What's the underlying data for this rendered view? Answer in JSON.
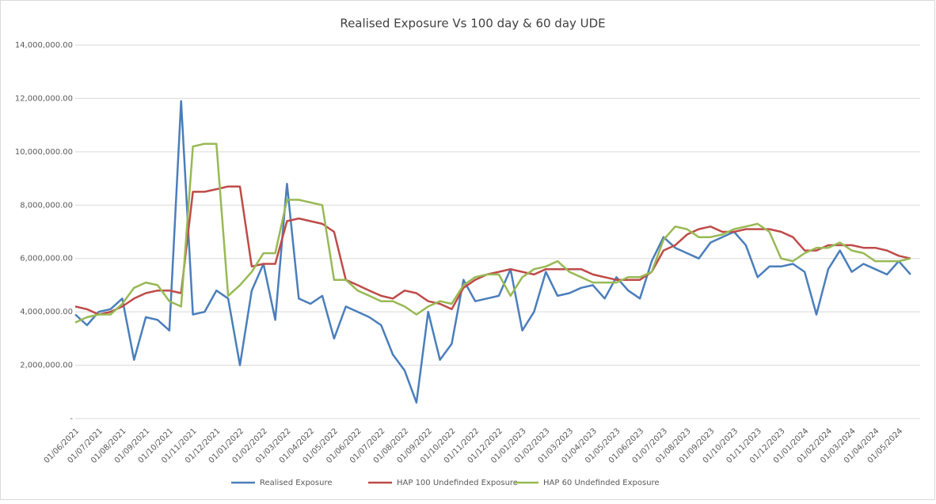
{
  "chart_data": {
    "type": "line",
    "title": "Realised Exposure Vs 100 day & 60 day UDE",
    "categories": [
      "01/06/2021",
      null,
      "01/07/2021",
      null,
      "01/08/2021",
      null,
      "01/09/2021",
      null,
      "01/10/2021",
      null,
      "01/11/2021",
      null,
      "01/12/2021",
      null,
      "01/01/2022",
      null,
      "01/02/2022",
      null,
      "01/03/2022",
      null,
      "01/04/2022",
      null,
      "01/05/2022",
      null,
      "01/06/2022",
      null,
      "01/07/2022",
      null,
      "01/08/2022",
      null,
      "01/09/2022",
      null,
      "01/10/2022",
      null,
      "01/11/2022",
      null,
      "01/12/2022",
      null,
      "01/01/2023",
      null,
      "01/02/2023",
      null,
      "01/03/2023",
      null,
      "01/04/2023",
      null,
      "01/05/2023",
      null,
      "01/06/2023",
      null,
      "01/07/2023",
      null,
      "01/08/2023",
      null,
      "01/09/2023",
      null,
      "01/10/2023",
      null,
      "01/11/2023",
      null,
      "01/12/2023",
      null,
      "01/01/2024",
      null,
      "01/02/2024",
      null,
      "01/03/2024",
      null,
      "01/04/2024",
      null,
      "01/05/2024",
      null
    ],
    "series": [
      {
        "name": "Realised Exposure",
        "color": "#4a7ebb",
        "values": [
          3900000,
          3500000,
          4000000,
          4100000,
          4500000,
          2200000,
          3800000,
          3700000,
          3300000,
          11900000,
          3900000,
          4000000,
          4800000,
          4500000,
          2000000,
          4800000,
          5800000,
          3700000,
          8800000,
          4500000,
          4300000,
          4600000,
          3000000,
          4200000,
          4000000,
          3800000,
          3500000,
          2400000,
          1800000,
          600000,
          4000000,
          2200000,
          2800000,
          5200000,
          4400000,
          4500000,
          4600000,
          5600000,
          3300000,
          4000000,
          5500000,
          4600000,
          4700000,
          4900000,
          5000000,
          4500000,
          5300000,
          4800000,
          4500000,
          5900000,
          6800000,
          6400000,
          6200000,
          6000000,
          6600000,
          6800000,
          7000000,
          6500000,
          5300000,
          5700000,
          5700000,
          5800000,
          5500000,
          3900000,
          5600000,
          6300000,
          5500000,
          5800000,
          5600000,
          5400000,
          5900000,
          5400000
        ]
      },
      {
        "name": "HAP 100 Undefinded Exposure",
        "color": "#be4b48",
        "values": [
          4200000,
          4100000,
          3900000,
          4000000,
          4200000,
          4500000,
          4700000,
          4800000,
          4800000,
          4700000,
          8500000,
          8500000,
          8600000,
          8700000,
          8700000,
          5700000,
          5800000,
          5800000,
          7400000,
          7500000,
          7400000,
          7300000,
          7000000,
          5200000,
          5000000,
          4800000,
          4600000,
          4500000,
          4800000,
          4700000,
          4400000,
          4300000,
          4100000,
          4900000,
          5200000,
          5400000,
          5500000,
          5600000,
          5500000,
          5400000,
          5600000,
          5600000,
          5600000,
          5600000,
          5400000,
          5300000,
          5200000,
          5200000,
          5200000,
          5500000,
          6300000,
          6500000,
          6900000,
          7100000,
          7200000,
          7000000,
          7000000,
          7100000,
          7100000,
          7100000,
          7000000,
          6800000,
          6300000,
          6300000,
          6500000,
          6500000,
          6500000,
          6400000,
          6400000,
          6300000,
          6100000,
          6000000
        ]
      },
      {
        "name": "HAP 60 Undefinded Exposure",
        "color": "#98b954",
        "values": [
          3600000,
          3800000,
          3900000,
          3900000,
          4300000,
          4900000,
          5100000,
          5000000,
          4400000,
          4200000,
          10200000,
          10300000,
          10300000,
          4600000,
          5000000,
          5500000,
          6200000,
          6200000,
          8200000,
          8200000,
          8100000,
          8000000,
          5200000,
          5200000,
          4800000,
          4600000,
          4400000,
          4400000,
          4200000,
          3900000,
          4200000,
          4400000,
          4300000,
          5000000,
          5300000,
          5400000,
          5400000,
          4600000,
          5300000,
          5600000,
          5700000,
          5900000,
          5500000,
          5300000,
          5100000,
          5100000,
          5100000,
          5300000,
          5300000,
          5500000,
          6700000,
          7200000,
          7100000,
          6800000,
          6800000,
          6900000,
          7100000,
          7200000,
          7300000,
          7000000,
          6000000,
          5900000,
          6200000,
          6400000,
          6400000,
          6600000,
          6300000,
          6200000,
          5900000,
          5900000,
          5900000,
          6000000
        ]
      }
    ],
    "ylim": [
      0,
      14000000
    ],
    "yticks": [
      {
        "value": 0,
        "label": "-"
      },
      {
        "value": 2000000,
        "label": "2,000,000.00"
      },
      {
        "value": 4000000,
        "label": "4,000,000.00"
      },
      {
        "value": 6000000,
        "label": "6,000,000.00"
      },
      {
        "value": 8000000,
        "label": "8,000,000.00"
      },
      {
        "value": 10000000,
        "label": "10,000,000.00"
      },
      {
        "value": 12000000,
        "label": "12,000,000.00"
      },
      {
        "value": 14000000,
        "label": "14,000,000.00"
      }
    ],
    "grid": true,
    "legend": "bottom"
  }
}
